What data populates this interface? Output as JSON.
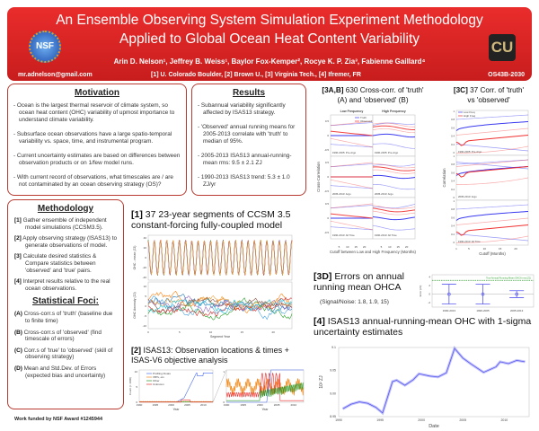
{
  "header": {
    "title_line1": "An Ensemble Observing System Simulation Experiment Methodology",
    "title_line2": "Applied to Global Ocean Heat Content Variability",
    "authors": "Arin D. Nelson¹,  Jeffrey B. Weiss¹,  Baylor Fox-Kemper²,  Rocye K. P. Zia³,  Fabienne Gaillard⁴",
    "email": "mr.adnelson@gmail.com",
    "affiliations": "[1] U. Colorado Boulder,   [2] Brown U.,   [3] Virginia Tech.,   [4] Ifremer, FR",
    "poster_id": "OS43B-2030",
    "left_logo": "NSF",
    "right_logo": "CU",
    "colors": {
      "banner": "#d82424",
      "border": "#b83a30"
    }
  },
  "motivation": {
    "title": "Motivation",
    "items": [
      "- Ocean is the largest thermal reservoir of climate system, so ocean heat content (OHC) variability of upmost importance to understand climate variability.",
      "- Subsurface ocean observations have a large spatio-temporal variability vs. space, time, and instrumental program.",
      "- Current uncertainty estimates are based on differences between observation products or on 1/few model runs.",
      "- With current record of observations, what timescales are / are not contaminated by an ocean observing strategy (OS)?"
    ]
  },
  "results": {
    "title": "Results",
    "items": [
      "- Subannual variability significantly affected by ISAS13 strategy.",
      "- 'Observed' annual running means for 2005-2013 correlate with 'truth' to median of 95%.",
      "- 2005-2013 ISAS13 annual-running-mean rms:   9.5 ± 2.1 ZJ",
      "- 1990-2013 ISAS13 trend:  5.3 ± 1.0 ZJ/yr"
    ]
  },
  "methodology": {
    "title": "Methodology",
    "steps": [
      {
        "num": "[1]",
        "text": "Gather ensemble of independent model simulations (CCSM3.5)."
      },
      {
        "num": "[2]",
        "text": "Apply observing strategy (ISAS13) to generate observations of model."
      },
      {
        "num": "[3]",
        "text": "Calculate desired statistics & Compare statistics between 'observed' and 'true' pairs."
      },
      {
        "num": "[4]",
        "text": "Interpret results relative to the real ocean observations."
      }
    ],
    "foci_title": "Statistical Foci:",
    "foci": [
      {
        "num": "(A)",
        "text": "Cross-corr.s of 'truth' (baseline due to finite time)"
      },
      {
        "num": "(B)",
        "text": "Cross-corr.s of 'observed' (find timescale of errors)"
      },
      {
        "num": "(C)",
        "text": "Corr.s of 'true' to 'observed' (skill of observing strategy)"
      },
      {
        "num": "(D)",
        "text": "Mean and Std.Dev. of Errors (expected bias and uncertainty)"
      }
    ]
  },
  "funding": "Work funded by NSF Award #1245944",
  "fig1": {
    "num": "[1]",
    "title": "37 23-year segments of CCSM 3.5 constant-forcing fully-coupled model",
    "top_ylabel": "OHC - mean (ZJ)",
    "top_yticks": [
      "40",
      "20",
      "0",
      "-20",
      "-40"
    ],
    "bottom_ylabel": "OHC Anomaly (ZJ)",
    "bottom_yticks": [
      "10",
      "5",
      "0",
      "-5",
      "-10"
    ],
    "xticks": [
      "0",
      "5",
      "10",
      "15",
      "20"
    ],
    "xlabel": "Segment Year"
  },
  "fig2": {
    "num": "[2]",
    "title": "ISAS13:  Observation locations & times + ISAS-V6 objective analysis",
    "ylabel": "Count (× 1000)",
    "left_yticks": [
      "10",
      "5",
      "0"
    ],
    "right_yticks": [
      "1",
      "0"
    ],
    "xticks": [
      "1990",
      "1995",
      "2000",
      "2005",
      "2010"
    ],
    "xlabel": "Year",
    "legend": [
      {
        "label": "Profiling Floats",
        "color": "#4a6cf0"
      },
      {
        "label": "XBTs, etc.",
        "color": "#f08a1c"
      },
      {
        "label": "Other",
        "color": "#2a9a2a"
      },
      {
        "label": "Unknown",
        "color": "#ee2a2a"
      }
    ]
  },
  "fig3ab": {
    "num": "[3A,B]",
    "title_a": "630 Cross-corr. of 'truth'",
    "title_b": "(A) and 'observed' (B)",
    "columns": [
      "Low Frequency",
      "High Frequency"
    ],
    "rows": [
      "1990-2005: Pre-Argo",
      "2005-2013: Argo",
      "1990-2013: All Time"
    ],
    "legend": [
      {
        "label": "Truth",
        "color": "#3a3af0"
      },
      {
        "label": "Observed",
        "color": "#f03030"
      }
    ],
    "ylabel": "Cross-Correlation",
    "yticks": [
      "0.5",
      "0",
      "-0.5"
    ],
    "xticks": [
      "5",
      "10",
      "15",
      "20"
    ],
    "xlabel": "Cutoff between Low and High Frequency (Months)"
  },
  "fig3c": {
    "num": "[3C]",
    "title_a": "37 Corr. of 'truth'",
    "title_b": "vs 'observed'",
    "legend": [
      {
        "label": "Low Freq",
        "color": "#3a3af0"
      },
      {
        "label": "High Freq",
        "color": "#f03030"
      }
    ],
    "ylabel": "Correlation",
    "yticks": [
      "1",
      "0.8",
      "0.6",
      "0.4",
      "0.2",
      "0"
    ],
    "xticks": [
      "1",
      "5",
      "10",
      "15",
      "20"
    ],
    "xlabel": "Cutoff (Months)",
    "rows": [
      "1990-2005: Pre-Argo",
      "2005-2013: Argo",
      "1990-2013: All Time"
    ]
  },
  "fig3d": {
    "num": "[3D]",
    "title": "Errors on annual running mean OHCA",
    "signal_noise": "(Signal/Noise:  1.8,  1.9,  15)",
    "ylabel": "Error (ZJ)",
    "yticks": [
      "4",
      "2",
      "0",
      "-2"
    ],
    "ref_label": "True Annual Running Mean OHCA rms (ZJ)",
    "chart_data": {
      "type": "errorbar",
      "categories": [
        "1990-2013",
        "1990-2005",
        "2005-2013"
      ],
      "mean": [
        0,
        0,
        0
      ],
      "half_width": [
        2.3,
        2.3,
        0.8
      ],
      "reference": 3.2,
      "ylim": [
        -3,
        4.5
      ]
    }
  },
  "fig4": {
    "num": "[4]",
    "title": "ISAS13 annual-running-mean OHC with 1-sigma uncertainty estimates",
    "ylabel": "10² ZJ",
    "xlabel": "Date",
    "yticks": [
      "9.1",
      "9.05",
      "9.00",
      "8.95"
    ],
    "xticks": [
      "1990",
      "1995",
      "2000",
      "2005",
      "2010"
    ],
    "chart_data": {
      "type": "line",
      "x": [
        1990.5,
        1991.5,
        1992.5,
        1993.5,
        1994.5,
        1995.3,
        1996.5,
        1997,
        1998,
        1999,
        1999.7,
        2001,
        2002,
        2003,
        2004,
        2005,
        2006,
        2007.5,
        2009,
        2009.5,
        2010.5,
        2011.5,
        2012.5
      ],
      "y": [
        8.967,
        8.977,
        8.982,
        8.979,
        8.97,
        8.958,
        9.026,
        9.029,
        9.018,
        9.03,
        9.043,
        9.038,
        9.036,
        9.045,
        9.098,
        9.077,
        9.064,
        9.046,
        9.058,
        9.069,
        9.065,
        9.072,
        9.069
      ],
      "xlim": [
        1990,
        2013
      ],
      "ylim": [
        8.95,
        9.1
      ],
      "color": "#5a5af0"
    }
  }
}
